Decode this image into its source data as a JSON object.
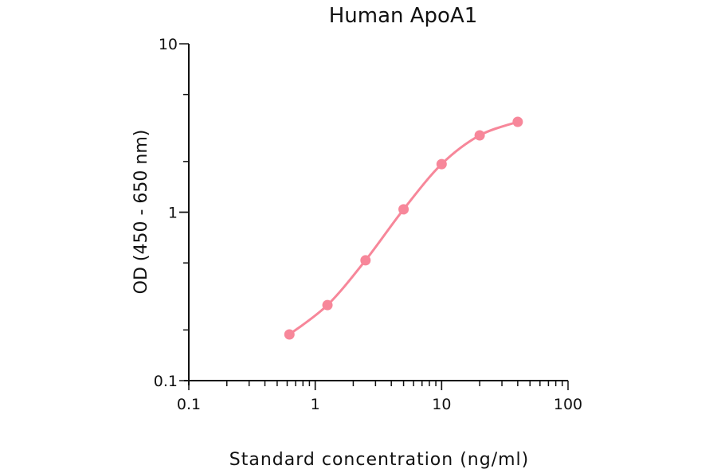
{
  "chart_data": {
    "type": "line",
    "title": "Human ApoA1",
    "xlabel": "Standard concentration (ng/ml)",
    "ylabel": "OD (450 - 650 nm)",
    "xscale": "log",
    "yscale": "log",
    "xlim": [
      0.1,
      100
    ],
    "ylim": [
      0.1,
      10
    ],
    "xticks": [
      0.1,
      1,
      10,
      100
    ],
    "xtick_labels": [
      "0.1",
      "1",
      "10",
      "100"
    ],
    "yticks": [
      0.1,
      1,
      10
    ],
    "ytick_labels": [
      "0.1",
      "1",
      "10"
    ],
    "grid": false,
    "series": [
      {
        "name": "Human ApoA1",
        "color": "#f7879a",
        "x": [
          0.625,
          1.25,
          2.5,
          5,
          10,
          20,
          40
        ],
        "y": [
          0.188,
          0.281,
          0.518,
          1.04,
          1.93,
          2.86,
          3.44
        ]
      }
    ]
  }
}
